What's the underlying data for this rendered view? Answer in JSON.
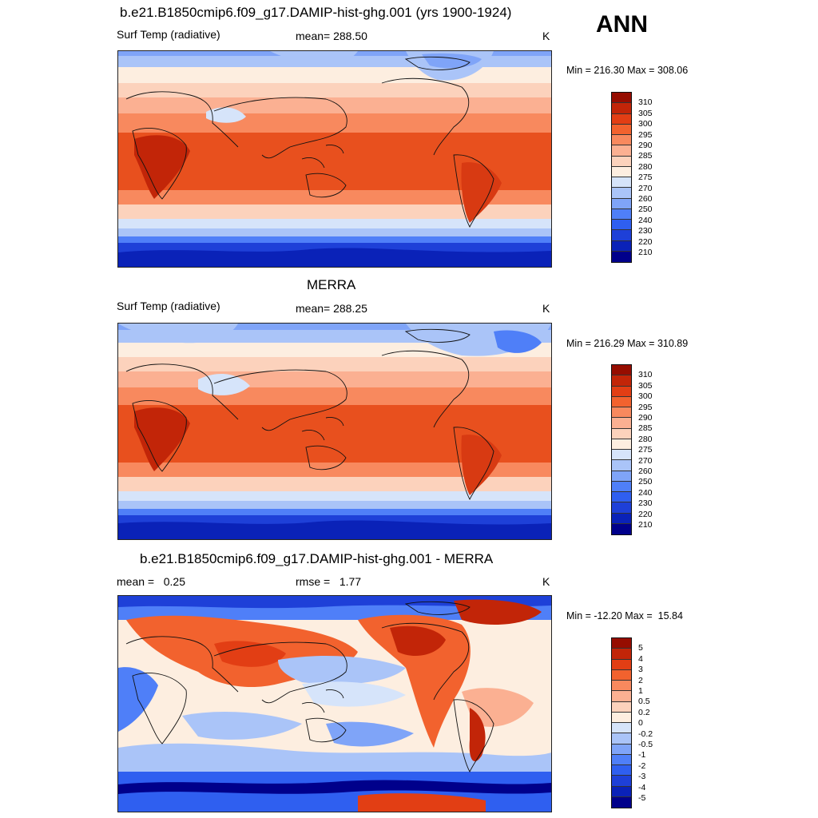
{
  "season": "ANN",
  "colors": {
    "temp_scale": [
      "#00008b",
      "#0a22b8",
      "#1e40d8",
      "#2f5ff0",
      "#4f7ff8",
      "#7fa4f8",
      "#aac4f8",
      "#d6e4fa",
      "#fdeee0",
      "#fcd2bc",
      "#fbb092",
      "#f8895e",
      "#f2622e",
      "#e23e14",
      "#c22508",
      "#960d00"
    ],
    "diff_scale": [
      "#00008b",
      "#0a22b8",
      "#1e40d8",
      "#2f5ff0",
      "#4f7ff8",
      "#7fa4f8",
      "#aac4f8",
      "#d6e4fa",
      "#fdeee0",
      "#fcd2bc",
      "#fbb092",
      "#f8895e",
      "#f2622e",
      "#e23e14",
      "#c22508",
      "#960d00"
    ]
  },
  "panels": [
    {
      "title": "b.e21.B1850cmip6.f09_g17.DAMIP-hist-ghg.001 (yrs 1900-1924)",
      "left_label": "Surf Temp (radiative)",
      "center_label": "mean= 288.50",
      "units": "K",
      "minmax": "Min = 216.30 Max = 308.06",
      "colorbar_labels": [
        "310",
        "305",
        "300",
        "295",
        "290",
        "285",
        "280",
        "275",
        "270",
        "260",
        "250",
        "240",
        "230",
        "220",
        "210"
      ]
    },
    {
      "title": "MERRA",
      "left_label": "Surf Temp (radiative)",
      "center_label": "mean= 288.25",
      "units": "K",
      "minmax": "Min = 216.29 Max = 310.89",
      "colorbar_labels": [
        "310",
        "305",
        "300",
        "295",
        "290",
        "285",
        "280",
        "275",
        "270",
        "260",
        "250",
        "240",
        "230",
        "220",
        "210"
      ]
    },
    {
      "title": "b.e21.B1850cmip6.f09_g17.DAMIP-hist-ghg.001 - MERRA",
      "left_label": "mean =   0.25",
      "center_label": "rmse =   1.77",
      "units": "K",
      "minmax": "Min = -12.20 Max =  15.84",
      "colorbar_labels": [
        "5",
        "4",
        "3",
        "2",
        "1",
        "0.5",
        "0.2",
        "0",
        "-0.2",
        "-0.5",
        "-1",
        "-2",
        "-3",
        "-4",
        "-5"
      ]
    }
  ]
}
